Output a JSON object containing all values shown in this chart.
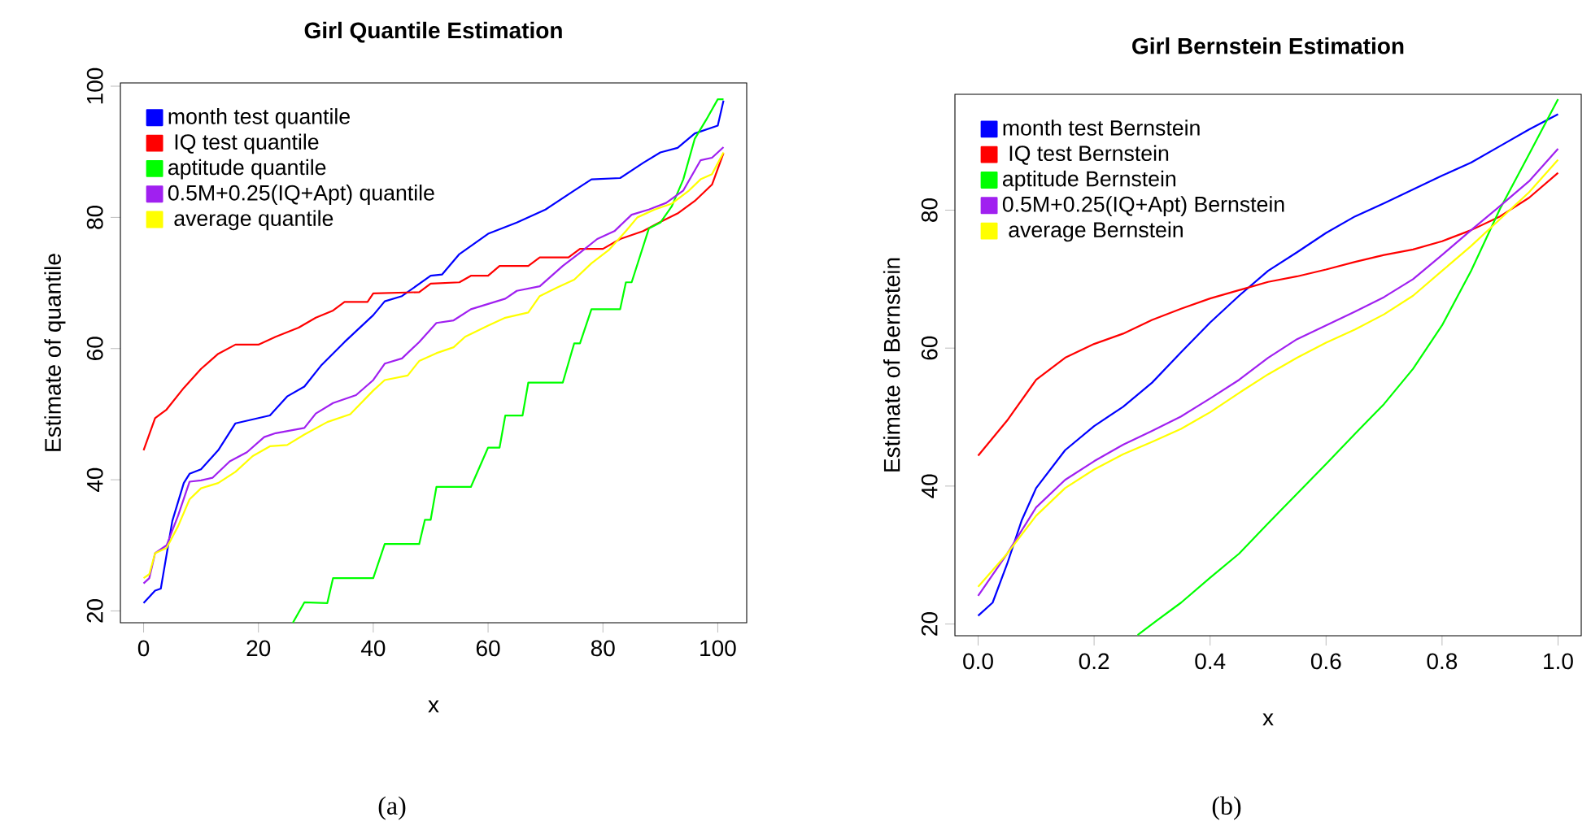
{
  "chart_data": [
    {
      "type": "line",
      "title": "Girl Quantile Estimation",
      "xlabel": "x",
      "ylabel": "Estimate of quantile",
      "annotations": [
        "(a)"
      ],
      "xlim": [
        -4.04,
        105.04
      ],
      "ylim": [
        18.2,
        100.5
      ],
      "xticks": [
        0,
        20,
        40,
        60,
        80,
        100
      ],
      "yticks": [
        20,
        40,
        60,
        80,
        100
      ],
      "legend": "top left",
      "marker": "none",
      "line_style": "solid",
      "series": [
        {
          "name": "month test quantile",
          "color": "#0000ff",
          "x": [
            0,
            2,
            3,
            5,
            7,
            8,
            10,
            13,
            16,
            20,
            22,
            25,
            28,
            31,
            35,
            40,
            42,
            45,
            50,
            52,
            55,
            60,
            65,
            70,
            75,
            78,
            83,
            87,
            90,
            93,
            96,
            100,
            101
          ],
          "values": [
            21.2,
            23.1,
            23.4,
            33.7,
            39.5,
            40.9,
            41.6,
            44.5,
            48.6,
            49.4,
            49.8,
            52.7,
            54.2,
            57.5,
            61,
            65.1,
            67.2,
            68,
            71.1,
            71.3,
            74.4,
            77.5,
            79.2,
            81.2,
            84.1,
            85.8,
            86,
            88.3,
            89.9,
            90.6,
            92.8,
            94,
            97.8
          ]
        },
        {
          "name": " IQ test quantile",
          "color": "#ff0000",
          "x": [
            0,
            2,
            4,
            7,
            10,
            13,
            16,
            20,
            23,
            27,
            30,
            33,
            35,
            39,
            40,
            48,
            50,
            55,
            57,
            60,
            62,
            67,
            69,
            74,
            76,
            80,
            83,
            87,
            90,
            93,
            96,
            99,
            101
          ],
          "values": [
            44.5,
            49.4,
            50.7,
            54,
            56.9,
            59.2,
            60.6,
            60.6,
            61.8,
            63.2,
            64.7,
            65.8,
            67.1,
            67.1,
            68.4,
            68.6,
            69.9,
            70.1,
            71.1,
            71.1,
            72.6,
            72.6,
            73.9,
            73.9,
            75.2,
            75.2,
            76.7,
            77.9,
            79.3,
            80.6,
            82.5,
            85,
            89.8
          ]
        },
        {
          "name": "aptitude quantile",
          "color": "#00ff00",
          "x": [
            26,
            28,
            32,
            33,
            40,
            42,
            48,
            49,
            50,
            51,
            57,
            60,
            62,
            63,
            66,
            67,
            73,
            75,
            76,
            78,
            83,
            84,
            85,
            88,
            90,
            92,
            94,
            96,
            98,
            100,
            101
          ],
          "values": [
            18.2,
            21.3,
            21.2,
            25,
            25,
            30.2,
            30.2,
            33.9,
            33.9,
            38.9,
            38.9,
            44.9,
            44.9,
            49.8,
            49.8,
            54.8,
            54.8,
            60.8,
            60.8,
            66,
            66,
            70.1,
            70.1,
            78.3,
            79.2,
            81.7,
            85.8,
            92,
            94.9,
            98,
            98
          ]
        },
        {
          "name": "0.5M+0.25(IQ+Apt) quantile",
          "color": "#a020f0",
          "x": [
            0,
            1,
            2,
            4,
            6,
            8,
            10,
            12,
            15,
            18,
            21,
            23,
            28,
            30,
            33,
            37,
            40,
            42,
            45,
            48,
            51,
            54,
            57,
            60,
            63,
            65,
            69,
            73,
            76,
            79,
            82,
            85,
            88,
            91,
            94,
            97,
            99,
            101
          ],
          "values": [
            24.2,
            25,
            28.8,
            30,
            34.5,
            39.7,
            39.9,
            40.3,
            42.8,
            44.2,
            46.5,
            47.1,
            47.9,
            50.1,
            51.7,
            52.9,
            55.2,
            57.7,
            58.5,
            61,
            63.9,
            64.3,
            66,
            66.8,
            67.6,
            68.8,
            69.5,
            72.6,
            74.6,
            76.7,
            77.9,
            80.4,
            81.2,
            82.2,
            84.1,
            88.7,
            89.1,
            90.7
          ]
        },
        {
          "name": " average quantile",
          "color": "#ffff00",
          "x": [
            0,
            1,
            2,
            4,
            6,
            8,
            10,
            13,
            16,
            19,
            22,
            25,
            28,
            32,
            36,
            40,
            42,
            46,
            48,
            51,
            54,
            56,
            60,
            63,
            67,
            69,
            72,
            75,
            78,
            81,
            84,
            86,
            89,
            92,
            95,
            97,
            99,
            101
          ],
          "values": [
            25,
            25.6,
            28.8,
            29.6,
            32.9,
            37,
            38.7,
            39.5,
            41.2,
            43.6,
            45.1,
            45.3,
            46.9,
            48.8,
            50,
            53.6,
            55.2,
            55.9,
            58.1,
            59.3,
            60.2,
            61.8,
            63.5,
            64.7,
            65.5,
            68,
            69.3,
            70.5,
            73,
            75,
            77.9,
            80,
            81.2,
            82.1,
            84.1,
            85.8,
            86.6,
            89.9
          ]
        }
      ]
    },
    {
      "type": "line",
      "title": "Girl Bernstein Estimation",
      "xlabel": "x",
      "ylabel": "Estimate of Bernstein",
      "annotations": [
        "(b)"
      ],
      "xlim": [
        -0.04,
        1.04
      ],
      "ylim": [
        18.3,
        96.8
      ],
      "xticks": [
        {
          "value": 0,
          "label": "0.0"
        },
        0.2,
        0.4,
        0.6,
        0.8,
        {
          "value": 1,
          "label": "1.0"
        }
      ],
      "yticks": [
        20,
        40,
        60,
        80
      ],
      "legend": "top left",
      "marker": "none",
      "line_style": "solid",
      "series": [
        {
          "name": "month test Bernstein",
          "color": "#0000ff",
          "x": [
            0,
            0.025,
            0.05,
            0.075,
            0.1,
            0.15,
            0.2,
            0.25,
            0.3,
            0.35,
            0.4,
            0.45,
            0.5,
            0.55,
            0.6,
            0.65,
            0.7,
            0.75,
            0.8,
            0.85,
            0.9,
            0.95,
            1.0
          ],
          "values": [
            21.2,
            23.1,
            28.7,
            35,
            39.7,
            45.2,
            48.7,
            51.5,
            55,
            59.4,
            63.7,
            67.6,
            71.2,
            73.9,
            76.7,
            79.1,
            81,
            83,
            85,
            86.9,
            89.3,
            91.7,
            93.9
          ]
        },
        {
          "name": " IQ test Bernstein",
          "color": "#ff0000",
          "x": [
            0,
            0.05,
            0.1,
            0.15,
            0.2,
            0.25,
            0.3,
            0.35,
            0.4,
            0.45,
            0.5,
            0.55,
            0.6,
            0.65,
            0.7,
            0.75,
            0.8,
            0.85,
            0.9,
            0.95,
            1.0
          ],
          "values": [
            44.4,
            49.5,
            55.4,
            58.6,
            60.6,
            62.1,
            64.1,
            65.7,
            67.2,
            68.4,
            69.6,
            70.4,
            71.4,
            72.5,
            73.5,
            74.3,
            75.5,
            77.1,
            79.1,
            81.8,
            85.4
          ]
        },
        {
          "name": "aptitude Bernstein",
          "color": "#00ff00",
          "x": [
            0.275,
            0.3,
            0.35,
            0.4,
            0.45,
            0.5,
            0.55,
            0.6,
            0.65,
            0.7,
            0.75,
            0.8,
            0.85,
            0.9,
            0.95,
            1.0
          ],
          "values": [
            18.4,
            20,
            23.1,
            26.7,
            30.2,
            34.6,
            38.9,
            43.2,
            47.6,
            51.9,
            57,
            63.3,
            71.2,
            80.2,
            88.1,
            96.1
          ]
        },
        {
          "name": "0.5M+0.25(IQ+Apt) Bernstein",
          "color": "#a020f0",
          "x": [
            0,
            0.05,
            0.1,
            0.15,
            0.2,
            0.25,
            0.3,
            0.35,
            0.4,
            0.45,
            0.5,
            0.55,
            0.6,
            0.65,
            0.7,
            0.75,
            0.8,
            0.85,
            0.9,
            0.95,
            1.0
          ],
          "values": [
            24.1,
            30.2,
            36.9,
            40.9,
            43.6,
            46,
            48,
            50.1,
            52.7,
            55.4,
            58.6,
            61.3,
            63.3,
            65.3,
            67.4,
            70,
            73.5,
            77.1,
            80.6,
            84.2,
            88.9
          ]
        },
        {
          "name": " average Bernstein",
          "color": "#ffff00",
          "x": [
            0,
            0.05,
            0.1,
            0.15,
            0.2,
            0.25,
            0.3,
            0.35,
            0.4,
            0.45,
            0.5,
            0.55,
            0.6,
            0.65,
            0.7,
            0.75,
            0.8,
            0.85,
            0.9,
            0.95,
            1.0
          ],
          "values": [
            25.4,
            30.2,
            35.7,
            39.7,
            42.4,
            44.6,
            46.4,
            48.3,
            50.7,
            53.5,
            56.2,
            58.6,
            60.8,
            62.7,
            64.9,
            67.6,
            71.2,
            74.8,
            78.7,
            82.6,
            87.3
          ]
        }
      ]
    }
  ]
}
